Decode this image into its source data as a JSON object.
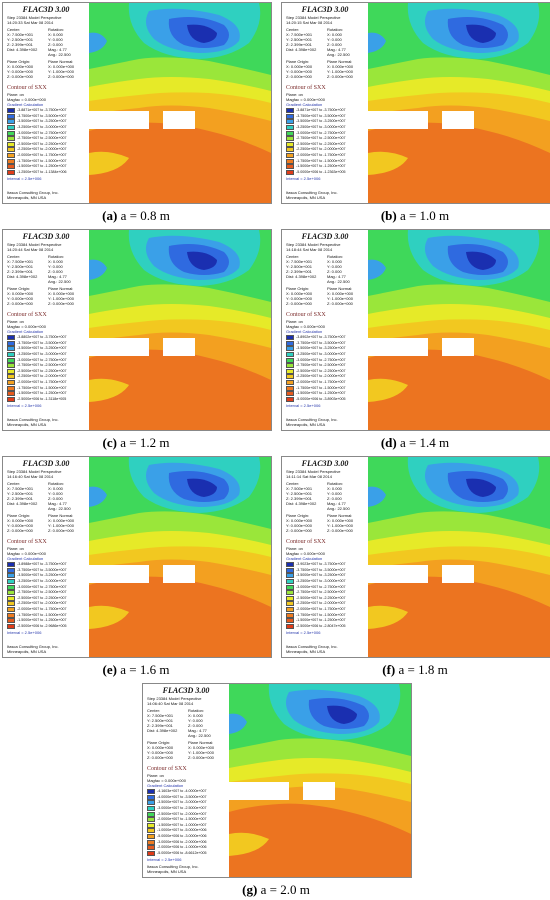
{
  "software_title": "FLAC3D 3.00",
  "company": "Itasca Consulting Group, Inc.",
  "location": "Minneapolis, MN  USA",
  "view": {
    "center_label": "Center:",
    "center": [
      "X: 7.500e+001",
      "Y: 2.500e+001",
      "Z: 2.399e+001"
    ],
    "dist": "Dist: 4.398e+002",
    "rotation_label": "Rotation:",
    "rotation": [
      "X:   0.000",
      "Y:   0.000",
      "Z:   0.000"
    ],
    "mag": "Mag.:    4.77",
    "ang": "Ang.:  22.500",
    "plane_origin_label": "Plane Origin:",
    "plane_origin": [
      "X: 0.000e+000",
      "Y: 0.000e+000",
      "Z: 0.000e+000"
    ],
    "plane_normal_label": "Plane Normal:",
    "plane_normal": [
      "X: 0.000e+000",
      "Y: 1.000e+000",
      "Z: 0.000e+000"
    ]
  },
  "contour": {
    "title": "Contour of SXX",
    "plane": "Plane: on",
    "magfac": "Magfac = 0.000e+000",
    "gradient": "Gradient Calculation",
    "interval": "Interval = 2.5e+006",
    "legend_colors": [
      "#1a2fb0",
      "#2f6ae0",
      "#3aa0e8",
      "#2fd0c0",
      "#3fd85a",
      "#9ae63a",
      "#e6ea28",
      "#f2c820",
      "#f3a020",
      "#ee7a20",
      "#e65a1e",
      "#e03c1a"
    ]
  },
  "panels": [
    {
      "key": "a",
      "step": "Step 23384  Model Perspective",
      "date": "14:20:33 Sat Mar 08 2014",
      "caption_letter": "(a)",
      "caption_text": " a = 0.8 m",
      "legend": [
        "-3.8871e+007 to -3.7500e+007",
        "-3.7500e+007 to -3.5000e+007",
        "-3.5000e+007 to -3.2500e+007",
        "-3.2500e+007 to -3.0000e+007",
        "-3.0000e+007 to -2.7500e+007",
        "-2.7500e+007 to -2.5000e+007",
        "-2.5000e+007 to -2.2500e+007",
        "-2.2500e+007 to -2.0000e+007",
        "-2.0000e+007 to -1.7500e+007",
        "-1.7500e+007 to -1.5000e+007",
        "-1.5000e+007 to -1.2500e+007",
        "-1.2500e+007 to -1.1384e+006"
      ]
    },
    {
      "key": "b",
      "step": "Step 23384  Model Perspective",
      "date": "14:20:15 Sat Mar 08 2014",
      "caption_letter": "(b)",
      "caption_text": " a = 1.0 m",
      "legend": [
        "-3.8871e+007 to -3.7500e+007",
        "-3.7500e+007 to -3.5000e+007",
        "-3.5000e+007 to -3.2500e+007",
        "-3.2500e+007 to -3.0000e+007",
        "-3.0000e+007 to -2.7500e+007",
        "-2.7500e+007 to -2.5000e+007",
        "-2.5000e+007 to -2.2500e+007",
        "-2.2500e+007 to -2.0000e+007",
        "-2.0000e+007 to -1.7500e+007",
        "-1.7500e+007 to -1.5000e+007",
        "-1.5000e+007 to -1.2500e+007",
        "-5.0000e+006 to -1.2363e+005"
      ]
    },
    {
      "key": "c",
      "step": "Step 23384  Model Perspective",
      "date": "14:20:44 Sat Mar 08 2014",
      "caption_letter": "(c)",
      "caption_text": " a = 1.2 m",
      "legend": [
        "-3.8802e+007 to -3.7500e+007",
        "-3.7500e+007 to -3.5000e+007",
        "-3.5000e+007 to -3.2500e+007",
        "-3.2500e+007 to -3.0000e+007",
        "-3.0000e+007 to -2.7500e+007",
        "-2.7500e+007 to -2.5000e+007",
        "-2.5000e+007 to -2.2500e+007",
        "-2.2500e+007 to -2.0000e+007",
        "-2.0000e+007 to -1.7500e+007",
        "-1.7500e+007 to -1.5000e+007",
        "-1.5000e+007 to -1.2500e+007",
        "-2.5000e+006 to -1.3118e+005"
      ]
    },
    {
      "key": "d",
      "step": "Step 23384  Model Perspective",
      "date": "14:18:44 Sat Mar 08 2014",
      "caption_letter": "(d)",
      "caption_text": " a = 1.4 m",
      "legend": [
        "-3.8902e+007 to -3.7500e+007",
        "-3.7500e+007 to -3.5000e+007",
        "-3.5000e+007 to -3.2500e+007",
        "-3.2500e+007 to -3.0000e+007",
        "-3.0000e+007 to -2.7500e+007",
        "-2.7500e+007 to -2.5000e+007",
        "-2.5000e+007 to -2.2500e+007",
        "-2.2500e+007 to -2.0000e+007",
        "-2.0000e+007 to -1.7500e+007",
        "-1.7500e+007 to -1.5000e+007",
        "-1.5000e+007 to -1.2500e+007",
        "-5.0000e+006 to -3.8903e+005"
      ]
    },
    {
      "key": "e",
      "step": "Step 23384  Model Perspective",
      "date": "14:16:40 Sat Mar 08 2014",
      "caption_letter": "(e)",
      "caption_text": " a = 1.6 m",
      "legend": [
        "-3.8988e+007 to -3.7500e+007",
        "-3.7500e+007 to -3.5000e+007",
        "-3.5000e+007 to -3.2500e+007",
        "-3.2500e+007 to -3.0000e+007",
        "-3.0000e+007 to -2.7500e+007",
        "-2.7500e+007 to -2.5000e+007",
        "-2.5000e+007 to -2.2500e+007",
        "-2.2500e+007 to -2.0000e+007",
        "-2.0000e+007 to -1.7500e+007",
        "-1.7500e+007 to -1.5000e+007",
        "-1.5000e+007 to -1.2500e+007",
        "-2.5000e+006 to -2.9686e+005"
      ]
    },
    {
      "key": "f",
      "step": "Step 23384  Model Perspective",
      "date": "14:11:14 Sat Mar 08 2014",
      "caption_letter": "(f)",
      "caption_text": " a = 1.8 m",
      "legend": [
        "-3.9023e+007 to -3.7500e+007",
        "-3.7500e+007 to -3.5000e+007",
        "-3.5000e+007 to -3.2500e+007",
        "-3.2500e+007 to -3.0000e+007",
        "-3.0000e+007 to -2.7500e+007",
        "-2.7500e+007 to -2.5000e+007",
        "-2.5000e+007 to -2.2500e+007",
        "-2.2500e+007 to -2.0000e+007",
        "-2.0000e+007 to -1.7500e+007",
        "-1.7500e+007 to -1.5000e+007",
        "-1.5000e+007 to -1.2500e+007",
        "-2.5000e+006 to -2.8047e+005"
      ]
    },
    {
      "key": "g",
      "step": "Step 23384  Model Perspective",
      "date": "14:06:40 Sat Mar 08 2014",
      "caption_letter": "(g)",
      "caption_text": " a = 2.0 m",
      "legend": [
        "-4.1603e+007 to -4.0000e+007",
        "-4.0000e+007 to -3.5000e+007",
        "-3.5000e+007 to -3.0000e+007",
        "-3.0000e+007 to -2.5000e+007",
        "-2.5000e+007 to -2.0000e+007",
        "-2.0000e+007 to -1.5000e+007",
        "-1.5000e+007 to -1.0000e+007",
        "-1.0000e+007 to -5.0000e+006",
        "-5.0000e+006 to -3.0000e+006",
        "-3.0000e+006 to -2.0000e+006",
        "-2.0000e+006 to -1.0000e+006",
        "-5.0000e+006 to -8.6612e+005"
      ]
    }
  ]
}
